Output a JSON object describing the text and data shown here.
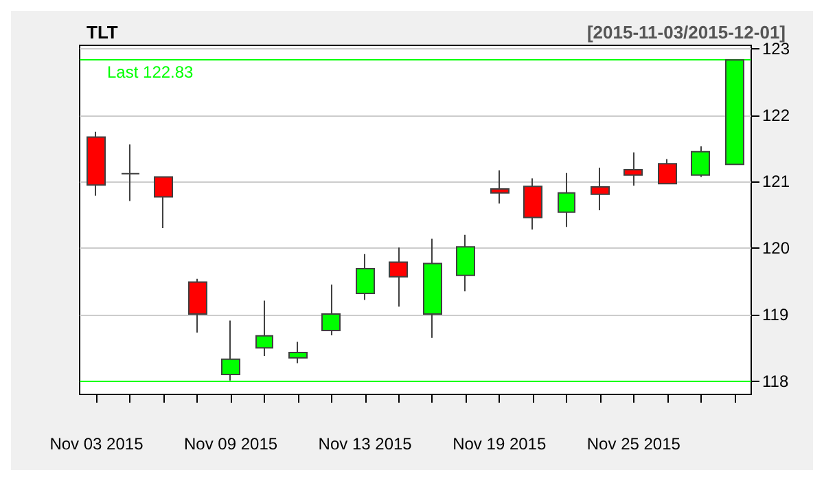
{
  "chart_data": {
    "type": "candlestick",
    "title": "TLT",
    "subtitle": "[2015-11-03/2015-12-01]",
    "categories": [
      "Nov 03 2015",
      null,
      null,
      null,
      "Nov 09 2015",
      null,
      null,
      null,
      "Nov 13 2015",
      null,
      null,
      null,
      "Nov 19 2015",
      null,
      null,
      null,
      "Nov 25 2015",
      null,
      null,
      null
    ],
    "ohlc": [
      [
        121.67,
        121.75,
        120.79,
        120.95
      ],
      [
        121.12,
        121.56,
        120.71,
        121.12
      ],
      [
        121.07,
        121.07,
        120.3,
        120.77
      ],
      [
        119.49,
        119.54,
        118.73,
        119.01
      ],
      [
        118.1,
        118.91,
        118.01,
        118.33
      ],
      [
        118.5,
        119.21,
        118.38,
        118.68
      ],
      [
        118.35,
        118.59,
        118.27,
        118.43
      ],
      [
        118.76,
        119.45,
        118.69,
        119.01
      ],
      [
        119.32,
        119.91,
        119.22,
        119.69
      ],
      [
        119.79,
        120.01,
        119.12,
        119.57
      ],
      [
        119.01,
        120.14,
        118.65,
        119.77
      ],
      [
        119.59,
        120.2,
        119.35,
        120.02
      ],
      [
        120.89,
        121.17,
        120.67,
        120.83
      ],
      [
        120.93,
        121.05,
        120.28,
        120.46
      ],
      [
        120.54,
        121.13,
        120.32,
        120.83
      ],
      [
        120.92,
        121.21,
        120.57,
        120.81
      ],
      [
        121.18,
        121.44,
        120.94,
        121.1
      ],
      [
        121.27,
        121.34,
        120.97,
        120.97
      ],
      [
        121.1,
        121.53,
        121.07,
        121.45
      ],
      [
        121.26,
        122.83,
        121.26,
        122.83
      ]
    ],
    "colors": [
      "#ff0000",
      "#404040",
      "#ff0000",
      "#ff0000",
      "#00ff00",
      "#00ff00",
      "#00ff00",
      "#00ff00",
      "#00ff00",
      "#ff0000",
      "#00ff00",
      "#00ff00",
      "#ff0000",
      "#ff0000",
      "#00ff00",
      "#ff0000",
      "#ff0000",
      "#ff0000",
      "#00ff00",
      "#00ff00"
    ],
    "ylim": [
      117.8,
      123.05
    ],
    "yticks": [
      118,
      119,
      120,
      121,
      122,
      123
    ],
    "grid": "y",
    "ref_lines": [
      {
        "axis": "y",
        "value": 122.83,
        "label": "Last 122.83",
        "color": "#00ff00"
      },
      {
        "axis": "y",
        "value": 118,
        "label": null,
        "color": "#00ff00"
      }
    ]
  }
}
